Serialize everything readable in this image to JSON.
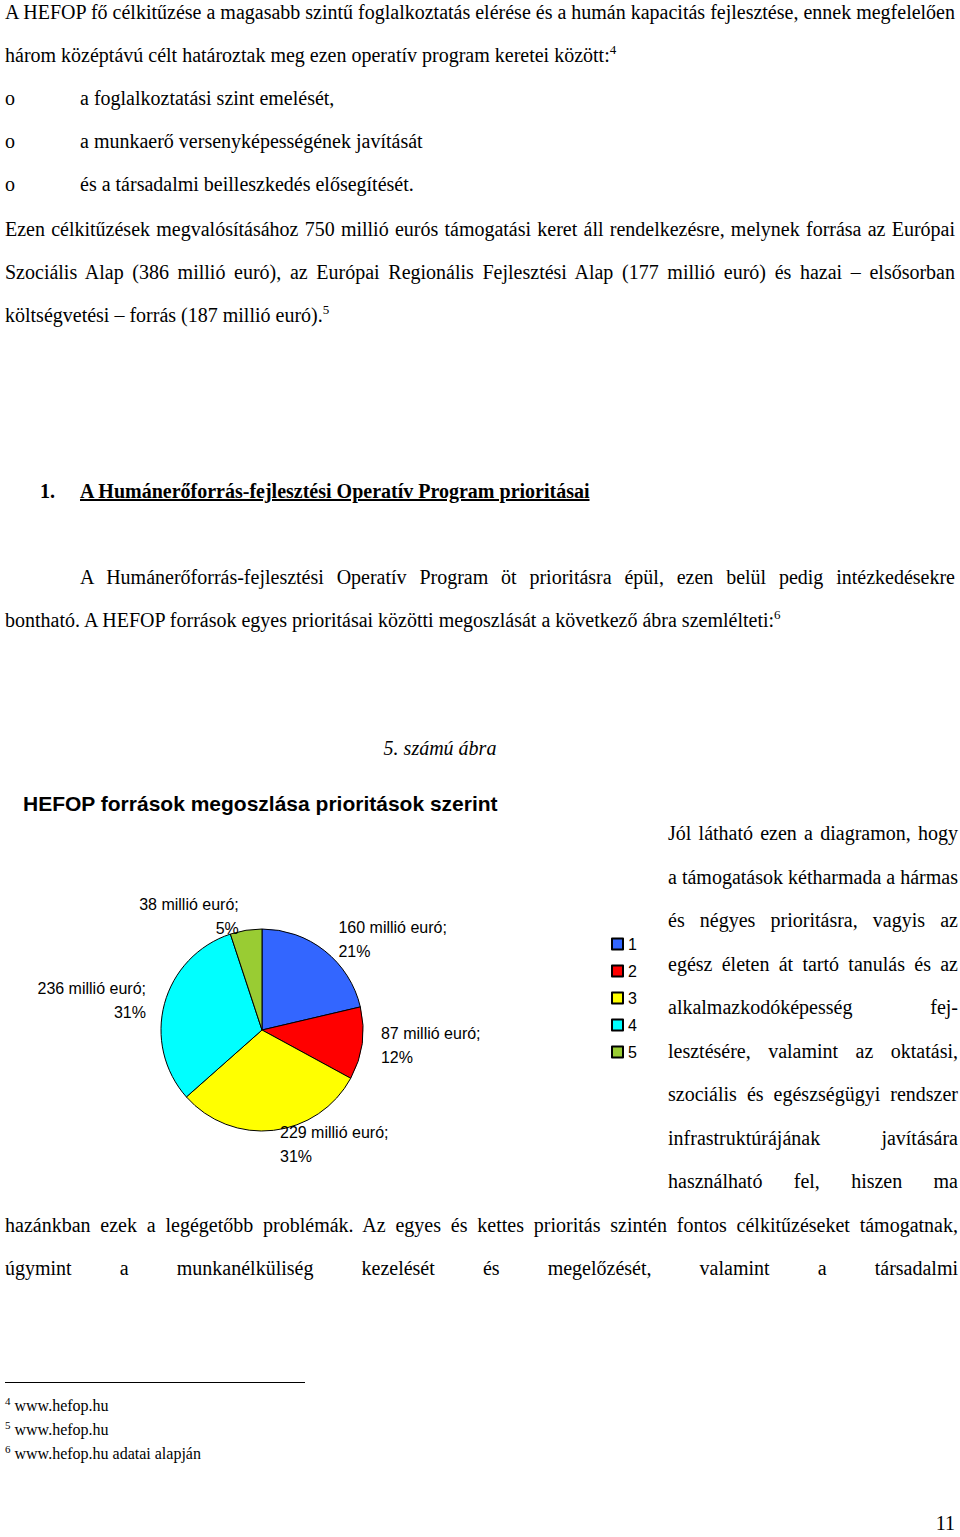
{
  "document": {
    "intro": [
      {
        "text": "A HEFOP fő célkitűzése a magasabb szintű foglalkoztatás elérése és a humán kapacitás fejlesztése, ennek megfelelően három középtávú célt határoztak meg ezen operatív program keretei között:"
      },
      {
        "sup": "4"
      }
    ],
    "bullet": "o",
    "bullets": [
      "a foglalkoztatási szint emelését,",
      "a munkaerő versenyképességének javítását",
      "és a társadalmi beilleszkedés elősegítését."
    ],
    "funding": [
      {
        "text": "Ezen célkitűzések megvalósításához 750 millió eurós támogatási keret áll rendelkezésre, melynek forrása az Európai Szociális Alap (386 millió euró), az Európai Regionális Fejlesztési Alap (177 millió euró) és hazai – elsősorban költségvetési – forrás (187 millió euró)."
      },
      {
        "sup": "5"
      }
    ],
    "section_number": "1.",
    "section_title": "A Humánerőforrás-fejlesztési Operatív Program prioritásai",
    "section_intro": [
      {
        "text": "A Humánerőforrás-fejlesztési Operatív Program öt prioritásra épül, ezen belül pedig intézkedésekre bontható. A HEFOP források egyes prioritásai közötti megoszlását a következő ábra szemlélteti:"
      },
      {
        "sup": "6"
      }
    ],
    "figure_caption": "5. számú ábra",
    "figure_text": "Jól látható ezen a diagramon, hogy a támogatások kétharmada a hármas és négyes prioritásra, vagyis az egész életen át tartó tanulás és az alkalmazkodóképesség fej­lesztésére, valamint az oktatási, szociális és egészségügyi rendszer infrastruktúrájának javítására használható fel, hiszen ma hazánkban ezek a legégetőbb problémák. Az egyes és kettes prioritás szintén fontos célkitűzéseket támogatnak, úgymint a munkanélküliség kezelését és megelőzését, valamint a társadalmi",
    "footnotes": [
      {
        "mark": "4",
        "text": "www.hefop.hu"
      },
      {
        "mark": "5",
        "text": "www.hefop.hu"
      },
      {
        "mark": "6",
        "text": "www.hefop.hu adatai alapján"
      }
    ],
    "page_number": "11"
  },
  "chart_data": {
    "type": "pie",
    "title": "HEFOP források megoszlása prioritások szerint",
    "categories": [
      "1",
      "2",
      "3",
      "4",
      "5"
    ],
    "values": [
      160,
      87,
      229,
      236,
      38
    ],
    "value_labels": [
      "160 millió euró; 21%",
      "87 millió euró; 12%",
      "229 millió euró; 31%",
      "236 millió euró; 31%",
      "38 millió euró; 5%"
    ],
    "colors": [
      "#3366ff",
      "#ff0000",
      "#ffff00",
      "#00ffff",
      "#99cc33"
    ],
    "data_labels": true,
    "legend": "right"
  }
}
